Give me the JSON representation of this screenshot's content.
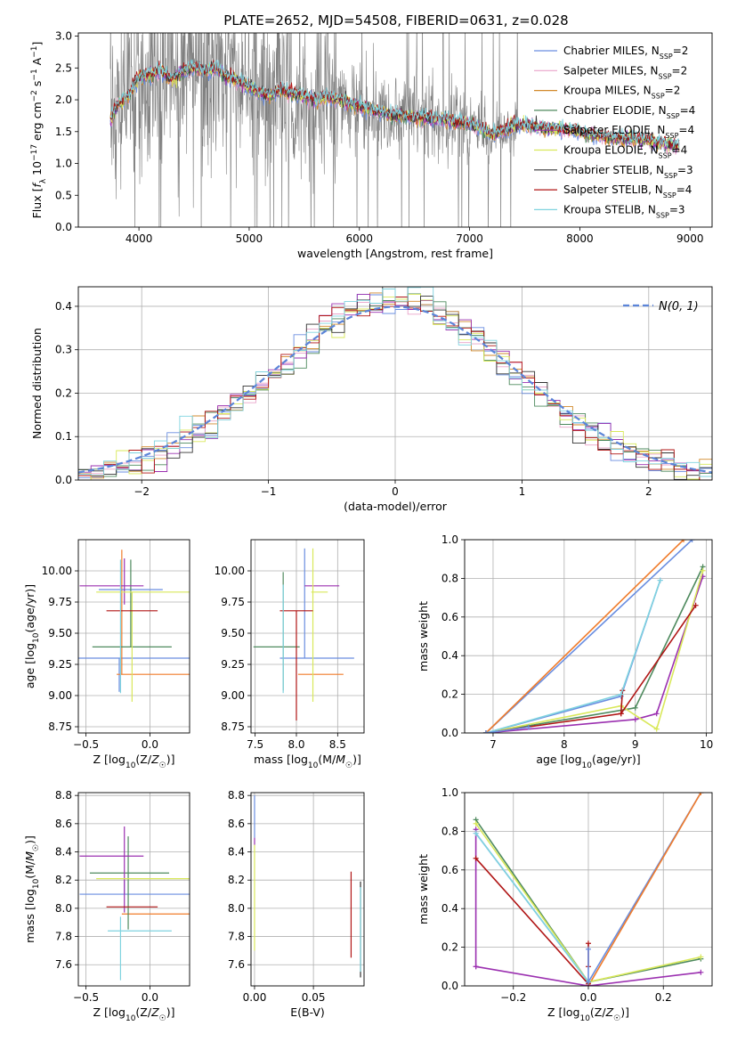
{
  "figure_title": "PLATE=2652, MJD=54508, FIBERID=0631, z=0.028",
  "series_styles": [
    {
      "name": "Chabrier MILES",
      "nssp": "2",
      "color": "#6a8ee0"
    },
    {
      "name": "Salpeter MILES",
      "nssp": "2",
      "color": "#e9a3c9"
    },
    {
      "name": "Kroupa MILES",
      "nssp": "2",
      "color": "#d28a2c"
    },
    {
      "name": "Chabrier ELODIE",
      "nssp": "4",
      "color": "#4e8a5e"
    },
    {
      "name": "Salpeter ELODIE",
      "nssp": "4",
      "color": "#9b30b0"
    },
    {
      "name": "Kroupa ELODIE",
      "nssp": "4",
      "color": "#d9e85a"
    },
    {
      "name": "Chabrier STELIB",
      "nssp": "3",
      "color": "#333333"
    },
    {
      "name": "Salpeter STELIB",
      "nssp": "4",
      "color": "#b01515"
    },
    {
      "name": "Kroupa STELIB",
      "nssp": "3",
      "color": "#7fd3df"
    }
  ],
  "chart_data": [
    {
      "id": "spectrum",
      "type": "line",
      "title": "PLATE=2652, MJD=54508, FIBERID=0631, z=0.028",
      "xlabel": "wavelength [Angstrom, rest frame]",
      "ylabel": "Flux [f_λ 10^-17 erg cm^-2 s^-1 A^-1]",
      "xlim": [
        3450,
        9200
      ],
      "ylim": [
        0,
        3.05
      ],
      "xticks": [
        4000,
        5000,
        6000,
        7000,
        8000,
        9000
      ],
      "yticks": [
        0.0,
        0.5,
        1.0,
        1.5,
        2.0,
        2.5,
        3.0
      ],
      "data_color": "#808080",
      "data_range": [
        3740,
        7440
      ],
      "model_range": [
        3740,
        8900
      ],
      "legend": "upper right",
      "model_x": [
        3750,
        3800,
        3900,
        4000,
        4100,
        4200,
        4300,
        4400,
        4500,
        4600,
        4700,
        4800,
        4900,
        5000,
        5100,
        5200,
        5300,
        5400,
        5500,
        5600,
        5700,
        5800,
        5900,
        6000,
        6100,
        6200,
        6300,
        6400,
        6500,
        6600,
        6700,
        6800,
        6900,
        7000,
        7100,
        7200,
        7300,
        7400,
        7500,
        7600,
        7700,
        7800,
        7900,
        8000,
        8100,
        8200,
        8300,
        8400,
        8500,
        8600,
        8700,
        8800,
        8900
      ],
      "model_y": [
        1.7,
        1.9,
        2.05,
        2.35,
        2.4,
        2.45,
        2.3,
        2.45,
        2.5,
        2.45,
        2.5,
        2.35,
        2.3,
        2.2,
        2.1,
        2.05,
        2.15,
        2.1,
        2.05,
        2.0,
        2.05,
        2.0,
        1.95,
        1.9,
        1.85,
        1.8,
        1.75,
        1.75,
        1.72,
        1.72,
        1.7,
        1.68,
        1.65,
        1.62,
        1.55,
        1.45,
        1.5,
        1.6,
        1.6,
        1.58,
        1.55,
        1.55,
        1.52,
        1.5,
        1.45,
        1.42,
        1.4,
        1.4,
        1.38,
        1.38,
        1.32,
        1.3,
        1.28
      ]
    },
    {
      "id": "residuals",
      "type": "line",
      "xlabel": "(data-model)/error",
      "ylabel": "Normed distribution",
      "xlim": [
        -2.5,
        2.5
      ],
      "ylim": [
        0,
        0.445
      ],
      "xticks": [
        -2,
        -1,
        0,
        1,
        2
      ],
      "yticks": [
        0.0,
        0.1,
        0.2,
        0.3,
        0.4
      ],
      "grid": true,
      "legend": "upper right",
      "normal_label": "N(0, 1)",
      "normal_color": "#5b84d8",
      "bin_width": 0.1
    },
    {
      "id": "age-vs-Z",
      "type": "errorbar",
      "xlabel": "Z [log10(Z/Z☉)]",
      "ylabel": "age  [log10(age/yr)]",
      "xlim": [
        -0.56,
        0.31
      ],
      "ylim": [
        8.7,
        10.25
      ],
      "xticks": [
        -0.5,
        0.0
      ],
      "yticks": [
        8.75,
        9.0,
        9.25,
        9.5,
        9.75,
        10.0
      ],
      "grid": true,
      "points": [
        {
          "x": -0.24,
          "y": 9.3,
          "xerr": [
            0.33,
            0.55
          ],
          "yerr": [
            0.27,
            0.0
          ],
          "color": "#6a8ee0"
        },
        {
          "x": -0.22,
          "y": 9.17,
          "xerr": [
            0.04,
            0.55
          ],
          "yerr": [
            0.0,
            1.0
          ],
          "color": "#f07b2a"
        },
        {
          "x": -0.2,
          "y": 9.85,
          "xerr": [
            0.2,
            0.3
          ],
          "yerr": [
            0.0,
            0.0
          ],
          "color": "#6a8ee0"
        },
        {
          "x": -0.15,
          "y": 9.39,
          "xerr": [
            0.3,
            0.32
          ],
          "yerr": [
            0.0,
            0.7
          ],
          "color": "#4e8a5e"
        },
        {
          "x": -0.2,
          "y": 9.88,
          "xerr": [
            0.35,
            0.15
          ],
          "yerr": [
            0.15,
            0.22
          ],
          "color": "#9b30b0"
        },
        {
          "x": -0.14,
          "y": 9.83,
          "xerr": [
            0.28,
            0.45
          ],
          "yerr": [
            0.88,
            0.0
          ],
          "color": "#d9e85a"
        },
        {
          "x": -0.14,
          "y": 9.68,
          "xerr": [
            0.2,
            0.2
          ],
          "yerr": [
            0.0,
            0.0
          ],
          "color": "#b01515"
        },
        {
          "x": -0.23,
          "y": 9.39,
          "xerr": [
            0.0,
            0.0
          ],
          "yerr": [
            0.37,
            0.7
          ],
          "color": "#7fd3df"
        }
      ]
    },
    {
      "id": "age-vs-mass",
      "type": "errorbar",
      "xlabel": "mass [log10(M/M☉)]",
      "ylabel": "",
      "xlim": [
        7.45,
        8.82
      ],
      "ylim": [
        8.7,
        10.25
      ],
      "xticks": [
        7.5,
        8.0,
        8.5
      ],
      "yticks": [
        8.75,
        9.0,
        9.25,
        9.5,
        9.75,
        10.0
      ],
      "grid": true,
      "points": [
        {
          "x": 8.1,
          "y": 9.3,
          "xerr": [
            0.3,
            0.6
          ],
          "yerr": [
            0.0,
            0.88
          ],
          "color": "#6a8ee0"
        },
        {
          "x": 8.02,
          "y": 9.17,
          "xerr": [
            0.0,
            0.55
          ],
          "yerr": [
            0.0,
            0.0
          ],
          "color": "#f07b2a"
        },
        {
          "x": 7.84,
          "y": 9.39,
          "xerr": [
            0.36,
            0.2
          ],
          "yerr": [
            0.35,
            0.6
          ],
          "color": "#4e8a5e"
        },
        {
          "x": 8.4,
          "y": 9.88,
          "xerr": [
            0.3,
            0.12
          ],
          "yerr": [
            0.0,
            0.0
          ],
          "color": "#9b30b0"
        },
        {
          "x": 8.2,
          "y": 9.83,
          "xerr": [
            0.02,
            0.18
          ],
          "yerr": [
            0.88,
            0.35
          ],
          "color": "#d9e85a"
        },
        {
          "x": 8.0,
          "y": 9.68,
          "xerr": [
            0.2,
            0.2
          ],
          "yerr": [
            0.88,
            0.0
          ],
          "color": "#b01515"
        },
        {
          "x": 7.84,
          "y": 9.39,
          "xerr": [
            0.0,
            0.0
          ],
          "yerr": [
            0.37,
            0.5
          ],
          "color": "#7fd3df"
        }
      ]
    },
    {
      "id": "weight-vs-age",
      "type": "line",
      "xlabel": "age  [log10(age/yr)]",
      "ylabel": "mass weight",
      "xlim": [
        6.6,
        10.08
      ],
      "ylim": [
        0,
        1.0
      ],
      "xticks": [
        7,
        8,
        9,
        10
      ],
      "yticks": [
        0.0,
        0.2,
        0.4,
        0.6,
        0.8,
        1.0
      ],
      "grid": true,
      "series": [
        {
          "color": "#6a8ee0",
          "x": [
            6.9,
            8.8,
            9.35
          ],
          "y": [
            0.0,
            0.19,
            0.79
          ]
        },
        {
          "color": "#6a8ee0",
          "x": [
            6.9,
            9.8
          ],
          "y": [
            0.0,
            1.0
          ]
        },
        {
          "color": "#f07b2a",
          "x": [
            6.9,
            9.68
          ],
          "y": [
            0.0,
            1.0
          ]
        },
        {
          "color": "#4e8a5e",
          "x": [
            6.9,
            9.0,
            9.95
          ],
          "y": [
            0.0,
            0.13,
            0.86
          ]
        },
        {
          "color": "#9b30b0",
          "x": [
            6.9,
            9.0,
            9.3,
            9.95
          ],
          "y": [
            0.0,
            0.07,
            0.1,
            0.81
          ]
        },
        {
          "color": "#d9e85a",
          "x": [
            6.9,
            8.8,
            9.3,
            9.95
          ],
          "y": [
            0.0,
            0.14,
            0.02,
            0.84
          ]
        },
        {
          "color": "#b01515",
          "x": [
            6.9,
            8.8,
            9.85
          ],
          "y": [
            0.0,
            0.1,
            0.66
          ]
        },
        {
          "color": "#b01515",
          "x": [
            8.8,
            8.82
          ],
          "y": [
            0.1,
            0.22
          ]
        },
        {
          "color": "#7fd3df",
          "x": [
            6.9,
            8.8,
            9.35
          ],
          "y": [
            0.0,
            0.2,
            0.79
          ]
        },
        {
          "color": "#6a8ee0",
          "x": [
            6.9,
            7.5
          ],
          "y": [
            0.0,
            0.03
          ]
        }
      ]
    },
    {
      "id": "mass-vs-Z",
      "type": "errorbar",
      "xlabel": "Z [log10(Z/Z☉)]",
      "ylabel": "mass [log10(M/M☉)]",
      "xlim": [
        -0.56,
        0.31
      ],
      "ylim": [
        7.45,
        8.82
      ],
      "xticks": [
        -0.5,
        0.0
      ],
      "yticks": [
        7.6,
        7.8,
        8.0,
        8.2,
        8.4,
        8.6,
        8.8
      ],
      "grid": true,
      "points": [
        {
          "x": -0.2,
          "y": 8.1,
          "xerr": [
            0.35,
            0.52
          ],
          "yerr": [
            0.0,
            0.1
          ],
          "color": "#6a8ee0"
        },
        {
          "x": -0.22,
          "y": 7.96,
          "xerr": [
            0.0,
            0.55
          ],
          "yerr": [
            0.0,
            0.0
          ],
          "color": "#f07b2a"
        },
        {
          "x": -0.17,
          "y": 8.25,
          "xerr": [
            0.3,
            0.32
          ],
          "yerr": [
            0.4,
            0.26
          ],
          "color": "#4e8a5e"
        },
        {
          "x": -0.2,
          "y": 8.37,
          "xerr": [
            0.35,
            0.15
          ],
          "yerr": [
            0.4,
            0.21
          ],
          "color": "#9b30b0"
        },
        {
          "x": -0.14,
          "y": 8.21,
          "xerr": [
            0.28,
            0.45
          ],
          "yerr": [
            0.0,
            0.0
          ],
          "color": "#d9e85a"
        },
        {
          "x": -0.14,
          "y": 8.01,
          "xerr": [
            0.2,
            0.2
          ],
          "yerr": [
            0.0,
            0.0
          ],
          "color": "#b01515"
        },
        {
          "x": -0.23,
          "y": 7.84,
          "xerr": [
            0.1,
            0.4
          ],
          "yerr": [
            0.35,
            0.1
          ],
          "color": "#7fd3df"
        }
      ]
    },
    {
      "id": "mass-vs-EBV",
      "type": "errorbar",
      "xlabel": "E(B-V)",
      "ylabel": "",
      "xlim": [
        -0.003,
        0.093
      ],
      "ylim": [
        7.45,
        8.82
      ],
      "xticks": [
        0.0,
        0.05
      ],
      "yticks": [
        7.6,
        7.8,
        8.0,
        8.2,
        8.4,
        8.6,
        8.8
      ],
      "grid": true,
      "points": [
        {
          "x": 0.0,
          "y": 8.6,
          "xerr": [
            0,
            0
          ],
          "yerr": [
            0.1,
            0.2
          ],
          "color": "#6a8ee0"
        },
        {
          "x": 0.0,
          "y": 8.5,
          "xerr": [
            0,
            0
          ],
          "yerr": [
            0.05,
            0.0
          ],
          "color": "#9b30b0"
        },
        {
          "x": 0.0,
          "y": 8.2,
          "xerr": [
            0,
            0
          ],
          "yerr": [
            0.5,
            0.25
          ],
          "color": "#d9e85a"
        },
        {
          "x": 0.082,
          "y": 7.95,
          "xerr": [
            0,
            0
          ],
          "yerr": [
            0.3,
            0.31
          ],
          "color": "#b01515"
        },
        {
          "x": 0.09,
          "y": 7.85,
          "xerr": [
            0,
            0
          ],
          "yerr": [
            0.34,
            0.34
          ],
          "color": "#333333"
        },
        {
          "x": 0.09,
          "y": 7.9,
          "xerr": [
            0,
            0
          ],
          "yerr": [
            0.35,
            0.25
          ],
          "color": "#7fd3df"
        }
      ]
    },
    {
      "id": "weight-vs-Z",
      "type": "line",
      "xlabel": "Z [log10(Z/Z☉)]",
      "ylabel": "mass weight",
      "xlim": [
        -0.33,
        0.33
      ],
      "ylim": [
        0,
        1.0
      ],
      "xticks": [
        -0.2,
        0.0,
        0.2
      ],
      "yticks": [
        0.0,
        0.2,
        0.4,
        0.6,
        0.8,
        1.0
      ],
      "grid": true,
      "series": [
        {
          "color": "#6a8ee0",
          "x": [
            -0.3,
            0.0,
            0.3
          ],
          "y": [
            0.79,
            0.02,
            1.0
          ]
        },
        {
          "color": "#f07b2a",
          "x": [
            0.0,
            0.3
          ],
          "y": [
            0.0,
            1.0
          ]
        },
        {
          "color": "#4e8a5e",
          "x": [
            -0.3,
            0.0,
            0.3
          ],
          "y": [
            0.86,
            0.02,
            0.14
          ]
        },
        {
          "color": "#9b30b0",
          "x": [
            -0.3,
            0.0,
            0.3
          ],
          "y": [
            0.1,
            0.0,
            0.07
          ]
        },
        {
          "color": "#9b30b0",
          "x": [
            -0.3,
            -0.3
          ],
          "y": [
            0.1,
            0.81
          ]
        },
        {
          "color": "#d9e85a",
          "x": [
            -0.3,
            0.0,
            0.3
          ],
          "y": [
            0.84,
            0.02,
            0.15
          ]
        },
        {
          "color": "#b01515",
          "x": [
            -0.3,
            0.0
          ],
          "y": [
            0.66,
            0.01
          ]
        },
        {
          "color": "#b01515",
          "x": [
            0.0,
            0.0
          ],
          "y": [
            0.1,
            0.22
          ]
        },
        {
          "color": "#7fd3df",
          "x": [
            -0.3,
            0.0
          ],
          "y": [
            0.79,
            0.02
          ]
        },
        {
          "color": "#6a8ee0",
          "x": [
            0.0,
            0.0
          ],
          "y": [
            0.02,
            0.19
          ]
        }
      ]
    }
  ]
}
